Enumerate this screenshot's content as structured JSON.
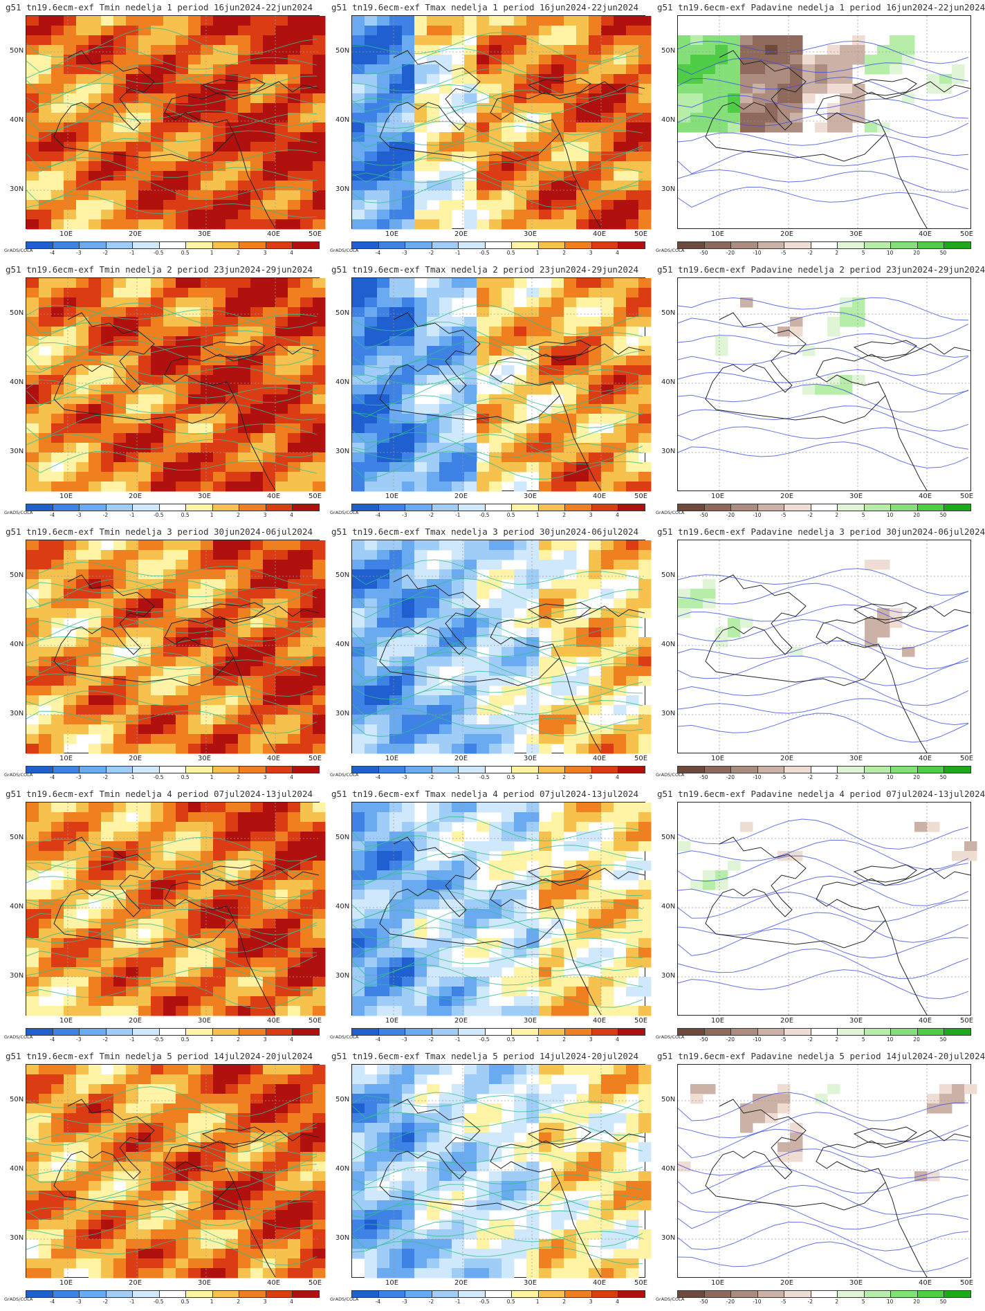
{
  "credit": "GrADS/COLA",
  "lat_labels": [
    "50N",
    "40N",
    "30N"
  ],
  "lon_labels": [
    "10E",
    "20E",
    "30E",
    "40E",
    "50E"
  ],
  "temp_scale": {
    "ticks": [
      "-4",
      "-3",
      "-2",
      "-1",
      "-0.5",
      "0.5",
      "1",
      "2",
      "3",
      "4"
    ],
    "colors": [
      "#1f5fd0",
      "#3f82e6",
      "#6aaaf0",
      "#9fcdf7",
      "#cfe8fb",
      "#ffffff",
      "#fff3a6",
      "#f7c14e",
      "#ef7f1f",
      "#dc3c14",
      "#b0100e"
    ]
  },
  "precip_scale": {
    "ticks": [
      "-50",
      "-20",
      "-10",
      "-5",
      "-2",
      "2",
      "5",
      "10",
      "20",
      "50"
    ],
    "colors": [
      "#6e4a3c",
      "#8f6a5c",
      "#ad8c80",
      "#ccb1a6",
      "#efdcd3",
      "#ffffff",
      "#dff5d6",
      "#b6eda8",
      "#86e07a",
      "#4fcd46",
      "#1ea81c"
    ]
  },
  "weeks": [
    {
      "tmin": "g51 tn19.6ecm-exf Tmin nedelja 1 period 16jun2024-22jun2024",
      "tmax": "g51 tn19.6ecm-exf Tmax nedelja 1 period 16jun2024-22jun2024",
      "prec": "g51 tn19.6ecm-exf Padavine nedelja 1 period 16jun2024-22jun2024",
      "tmin_fill": [
        0.55,
        0.6,
        0.75,
        0.8,
        0.85
      ],
      "tmax_fill": [
        -0.7,
        0.1,
        0.5,
        0.6,
        0.7
      ],
      "prec_fill": [
        0.6,
        -0.7,
        -0.3,
        0.2,
        0.1
      ]
    },
    {
      "tmin": "g51 tn19.6ecm-exf Tmin nedelja 2 period 23jun2024-29jun2024",
      "tmax": "g51 tn19.6ecm-exf Tmax nedelja 2 period 23jun2024-29jun2024",
      "prec": "g51 tn19.6ecm-exf Padavine nedelja 2 period 23jun2024-29jun2024",
      "tmin_fill": [
        0.5,
        0.6,
        0.7,
        0.8,
        0.75
      ],
      "tmax_fill": [
        -0.75,
        -0.4,
        0.3,
        0.5,
        0.5
      ],
      "prec_fill": [
        0.05,
        -0.1,
        0.2,
        0.0,
        0.0
      ]
    },
    {
      "tmin": "g51 tn19.6ecm-exf Tmin nedelja 3 period 30jun2024-06jul2024",
      "tmax": "g51 tn19.6ecm-exf Tmax nedelja 3 period 30jun2024-06jul2024",
      "prec": "g51 tn19.6ecm-exf Padavine nedelja 3 period 30jun2024-06jul2024",
      "tmin_fill": [
        0.45,
        0.5,
        0.55,
        0.7,
        0.75
      ],
      "tmax_fill": [
        -0.6,
        -0.45,
        -0.2,
        0.2,
        0.3
      ],
      "prec_fill": [
        0.15,
        0.05,
        0.0,
        -0.2,
        0.0
      ]
    },
    {
      "tmin": "g51 tn19.6ecm-exf Tmin nedelja 4 period 07jul2024-13jul2024",
      "tmax": "g51 tn19.6ecm-exf Tmax nedelja 4 period 07jul2024-13jul2024",
      "prec": "g51 tn19.6ecm-exf Padavine nedelja 4 period 07jul2024-13jul2024",
      "tmin_fill": [
        0.45,
        0.5,
        0.55,
        0.7,
        0.72
      ],
      "tmax_fill": [
        -0.55,
        -0.3,
        -0.15,
        0.25,
        0.2
      ],
      "prec_fill": [
        0.1,
        -0.05,
        0.0,
        0.0,
        -0.1
      ]
    },
    {
      "tmin": "g51 tn19.6ecm-exf Tmin nedelja 5 period 14jul2024-20jul2024",
      "tmax": "g51 tn19.6ecm-exf Tmax nedelja 5 period 14jul2024-20jul2024",
      "prec": "g51 tn19.6ecm-exf Padavine nedelja 5 period 14jul2024-20jul2024",
      "tmin_fill": [
        0.45,
        0.5,
        0.55,
        0.65,
        0.7
      ],
      "tmax_fill": [
        -0.5,
        -0.25,
        -0.15,
        0.2,
        0.2
      ],
      "prec_fill": [
        -0.1,
        -0.2,
        0.05,
        0.0,
        -0.15
      ]
    }
  ]
}
